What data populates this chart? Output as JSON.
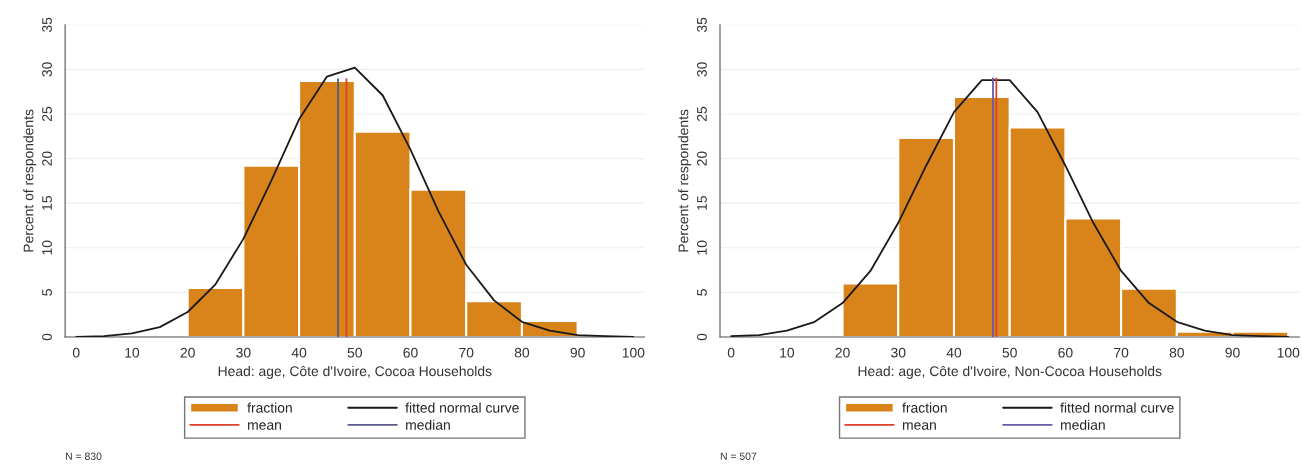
{
  "chart_data": [
    {
      "type": "histogram",
      "xlabel": "Head: age, Côte d'Ivoire, Cocoa Households",
      "ylabel": "Percent of respondents",
      "xlim": [
        -2,
        102
      ],
      "ylim": [
        0,
        35
      ],
      "xticks": [
        0,
        10,
        20,
        30,
        40,
        50,
        60,
        70,
        80,
        90,
        100
      ],
      "yticks": [
        0,
        5,
        10,
        15,
        20,
        25,
        30,
        35
      ],
      "grid": "y",
      "legend": "bottom",
      "annotations": [
        "N = 830"
      ],
      "series": [
        {
          "name": "fraction",
          "color": "#d9841a",
          "bins": [
            20,
            30,
            40,
            50,
            60,
            70,
            80,
            90
          ],
          "values": [
            5.5,
            19.2,
            28.7,
            23.0,
            16.5,
            4.0,
            1.8
          ]
        },
        {
          "name": "fitted normal curve",
          "type": "line",
          "color": "#1a1a1a",
          "x": [
            0,
            5,
            10,
            15,
            20,
            25,
            30,
            35,
            40,
            45,
            50,
            55,
            60,
            65,
            70,
            75,
            80,
            85,
            90,
            95,
            100
          ],
          "values": [
            0,
            0.1,
            0.4,
            1.1,
            2.8,
            5.9,
            11.0,
            17.5,
            24.4,
            29.2,
            30.2,
            27.1,
            21.0,
            14.1,
            8.1,
            4.1,
            1.7,
            0.7,
            0.2,
            0.1,
            0
          ]
        },
        {
          "name": "mean",
          "type": "line",
          "color": "#e0402a",
          "x": [
            48.5,
            48.5
          ],
          "values": [
            0,
            28.9
          ]
        },
        {
          "name": "median",
          "type": "line",
          "color": "#5a5a8a",
          "x": [
            47,
            47
          ],
          "values": [
            0,
            28.9
          ]
        }
      ]
    },
    {
      "type": "histogram",
      "xlabel": "Head: age, Côte d'Ivoire, Non-Cocoa Households",
      "ylabel": "Percent of respondents",
      "xlim": [
        -2,
        102
      ],
      "ylim": [
        0,
        35
      ],
      "xticks": [
        0,
        10,
        20,
        30,
        40,
        50,
        60,
        70,
        80,
        90,
        100
      ],
      "yticks": [
        0,
        5,
        10,
        15,
        20,
        25,
        30,
        35
      ],
      "grid": "y",
      "legend": "bottom",
      "annotations": [
        "N = 507"
      ],
      "series": [
        {
          "name": "fraction",
          "color": "#d9841a",
          "bins": [
            20,
            30,
            40,
            50,
            60,
            70,
            80,
            90,
            100
          ],
          "values": [
            6.0,
            22.3,
            26.9,
            23.5,
            13.3,
            5.4,
            0.6,
            0.6
          ]
        },
        {
          "name": "fitted normal curve",
          "type": "line",
          "color": "#1a1a1a",
          "x": [
            0,
            5,
            10,
            15,
            20,
            25,
            30,
            35,
            40,
            45,
            50,
            55,
            60,
            65,
            70,
            75,
            80,
            85,
            90,
            95,
            100
          ],
          "values": [
            0.1,
            0.2,
            0.7,
            1.7,
            3.8,
            7.4,
            12.8,
            19.2,
            25.2,
            28.8,
            28.8,
            25.2,
            19.2,
            12.8,
            7.4,
            3.8,
            1.7,
            0.7,
            0.2,
            0.1,
            0
          ]
        },
        {
          "name": "mean",
          "type": "line",
          "color": "#e0402a",
          "x": [
            47.6,
            47.6
          ],
          "values": [
            0,
            29
          ]
        },
        {
          "name": "median",
          "type": "line",
          "color": "#6a5aa8",
          "x": [
            47,
            47
          ],
          "values": [
            0,
            29
          ]
        }
      ]
    }
  ]
}
